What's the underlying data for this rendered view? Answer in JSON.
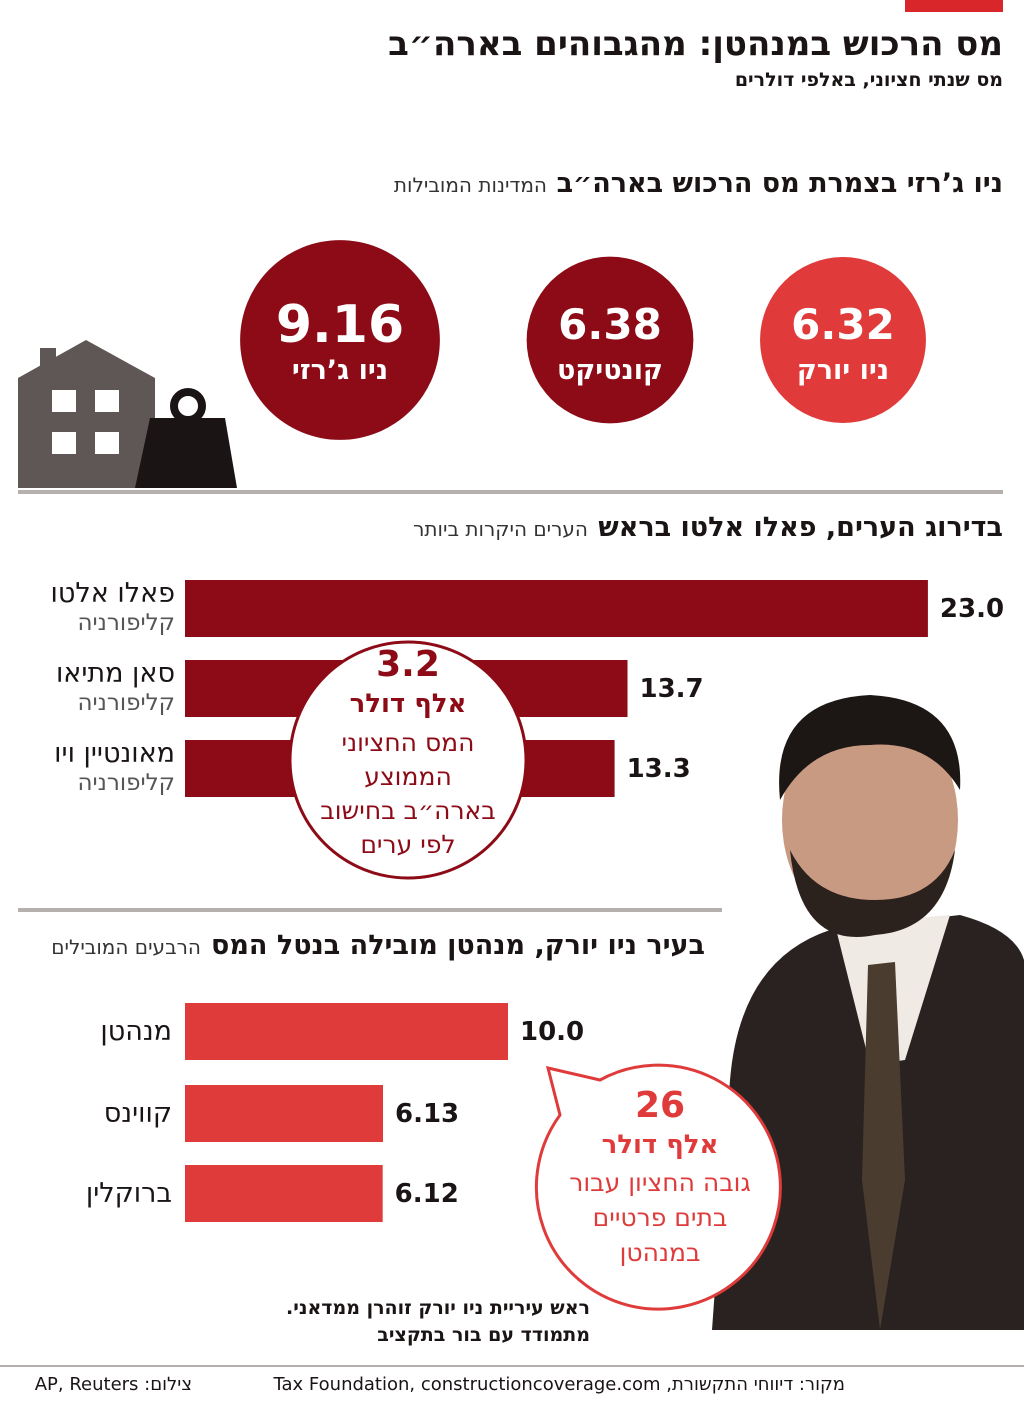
{
  "title": "מס הרכוש במנהטן: מהגבוהים בארה״ב",
  "subtitle": "מס שנתי חציוני, באלפי דולרים",
  "chart_data": [
    {
      "type": "bubble",
      "title": "ניו ג’רזי בצמרת מס הרכוש בארה״ב",
      "subtitle": "המדינות המובילות",
      "categories": [
        "ניו יורק",
        "קונטיקט",
        "ניו ג’רזי"
      ],
      "values": [
        6.32,
        6.38,
        9.16
      ],
      "colors": [
        "#e03a3a",
        "#8c0b16",
        "#8c0b16"
      ]
    },
    {
      "type": "bar",
      "title": "בדירוג הערים, פאלו אלטו בראש",
      "subtitle": "הערים היקרות ביותר",
      "categories": [
        "פאלו אלטו",
        "סאן מתיאו",
        "מאונטיין ויו"
      ],
      "sublabels": [
        "קליפורניה",
        "קליפורניה",
        "קליפורניה"
      ],
      "values": [
        23,
        13.7,
        13.3
      ],
      "value_labels": [
        "23.0",
        "13.7",
        "13.3"
      ],
      "color": "#8c0b16",
      "callout": {
        "value": 3.2,
        "unit": "אלף דולר",
        "lines": [
          "המס החציוני",
          "הממוצע",
          "בארה״ב בחישוב",
          "לפי ערים"
        ]
      }
    },
    {
      "type": "bar",
      "title": "בעיר ניו יורק, מנהטן מובילה בנטל המס",
      "subtitle": "הרבעים המובילים",
      "categories": [
        "מנהטן",
        "קווינס",
        "ברוקלין"
      ],
      "values": [
        10,
        6.13,
        6.12
      ],
      "value_labels": [
        "10.0",
        "6.13",
        "6.12"
      ],
      "color": "#df3b3b",
      "callout": {
        "value": 26,
        "unit": "אלף דולר",
        "lines": [
          "גובה החציון עבור",
          "בתים פרטיים",
          "במנהטן"
        ]
      }
    }
  ],
  "caption": [
    "ראש עיריית ניו יורק זוהרן ממדאני.",
    "מתמודד עם בור בתקציב"
  ],
  "source": "מקור: דיווחי התקשורת, Tax Foundation, constructioncoverage.com",
  "credit": "צילום: AP, Reuters"
}
